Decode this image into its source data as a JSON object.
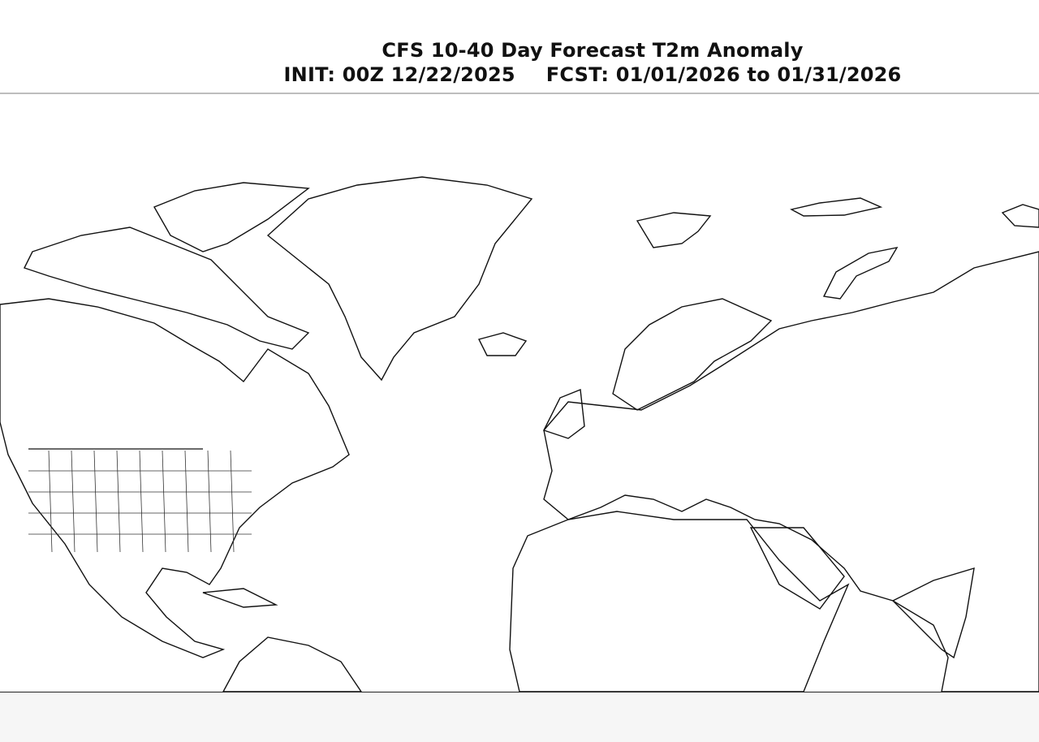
{
  "header": {
    "title": "CFS 10-40 Day Forecast T2m Anomaly",
    "init": "INIT: 00Z 12/22/2025",
    "forecast": "FCST: 01/01/2026 to 01/31/2026"
  },
  "map": {
    "variable": "T2m Anomaly",
    "projection": "cylindrical",
    "region": "North America, Atlantic, Europe, Africa, Asia",
    "palette": {
      "strong_cold": "#5b8fe0",
      "cold": "#9cc8ec",
      "slight_cold": "#d6ebf7",
      "neutral": "#ffffff",
      "slight_warm": "#fff2b3",
      "warm": "#ffd966",
      "warmer": "#f8b830",
      "hot": "#f07820",
      "very_hot": "#e03020"
    }
  }
}
